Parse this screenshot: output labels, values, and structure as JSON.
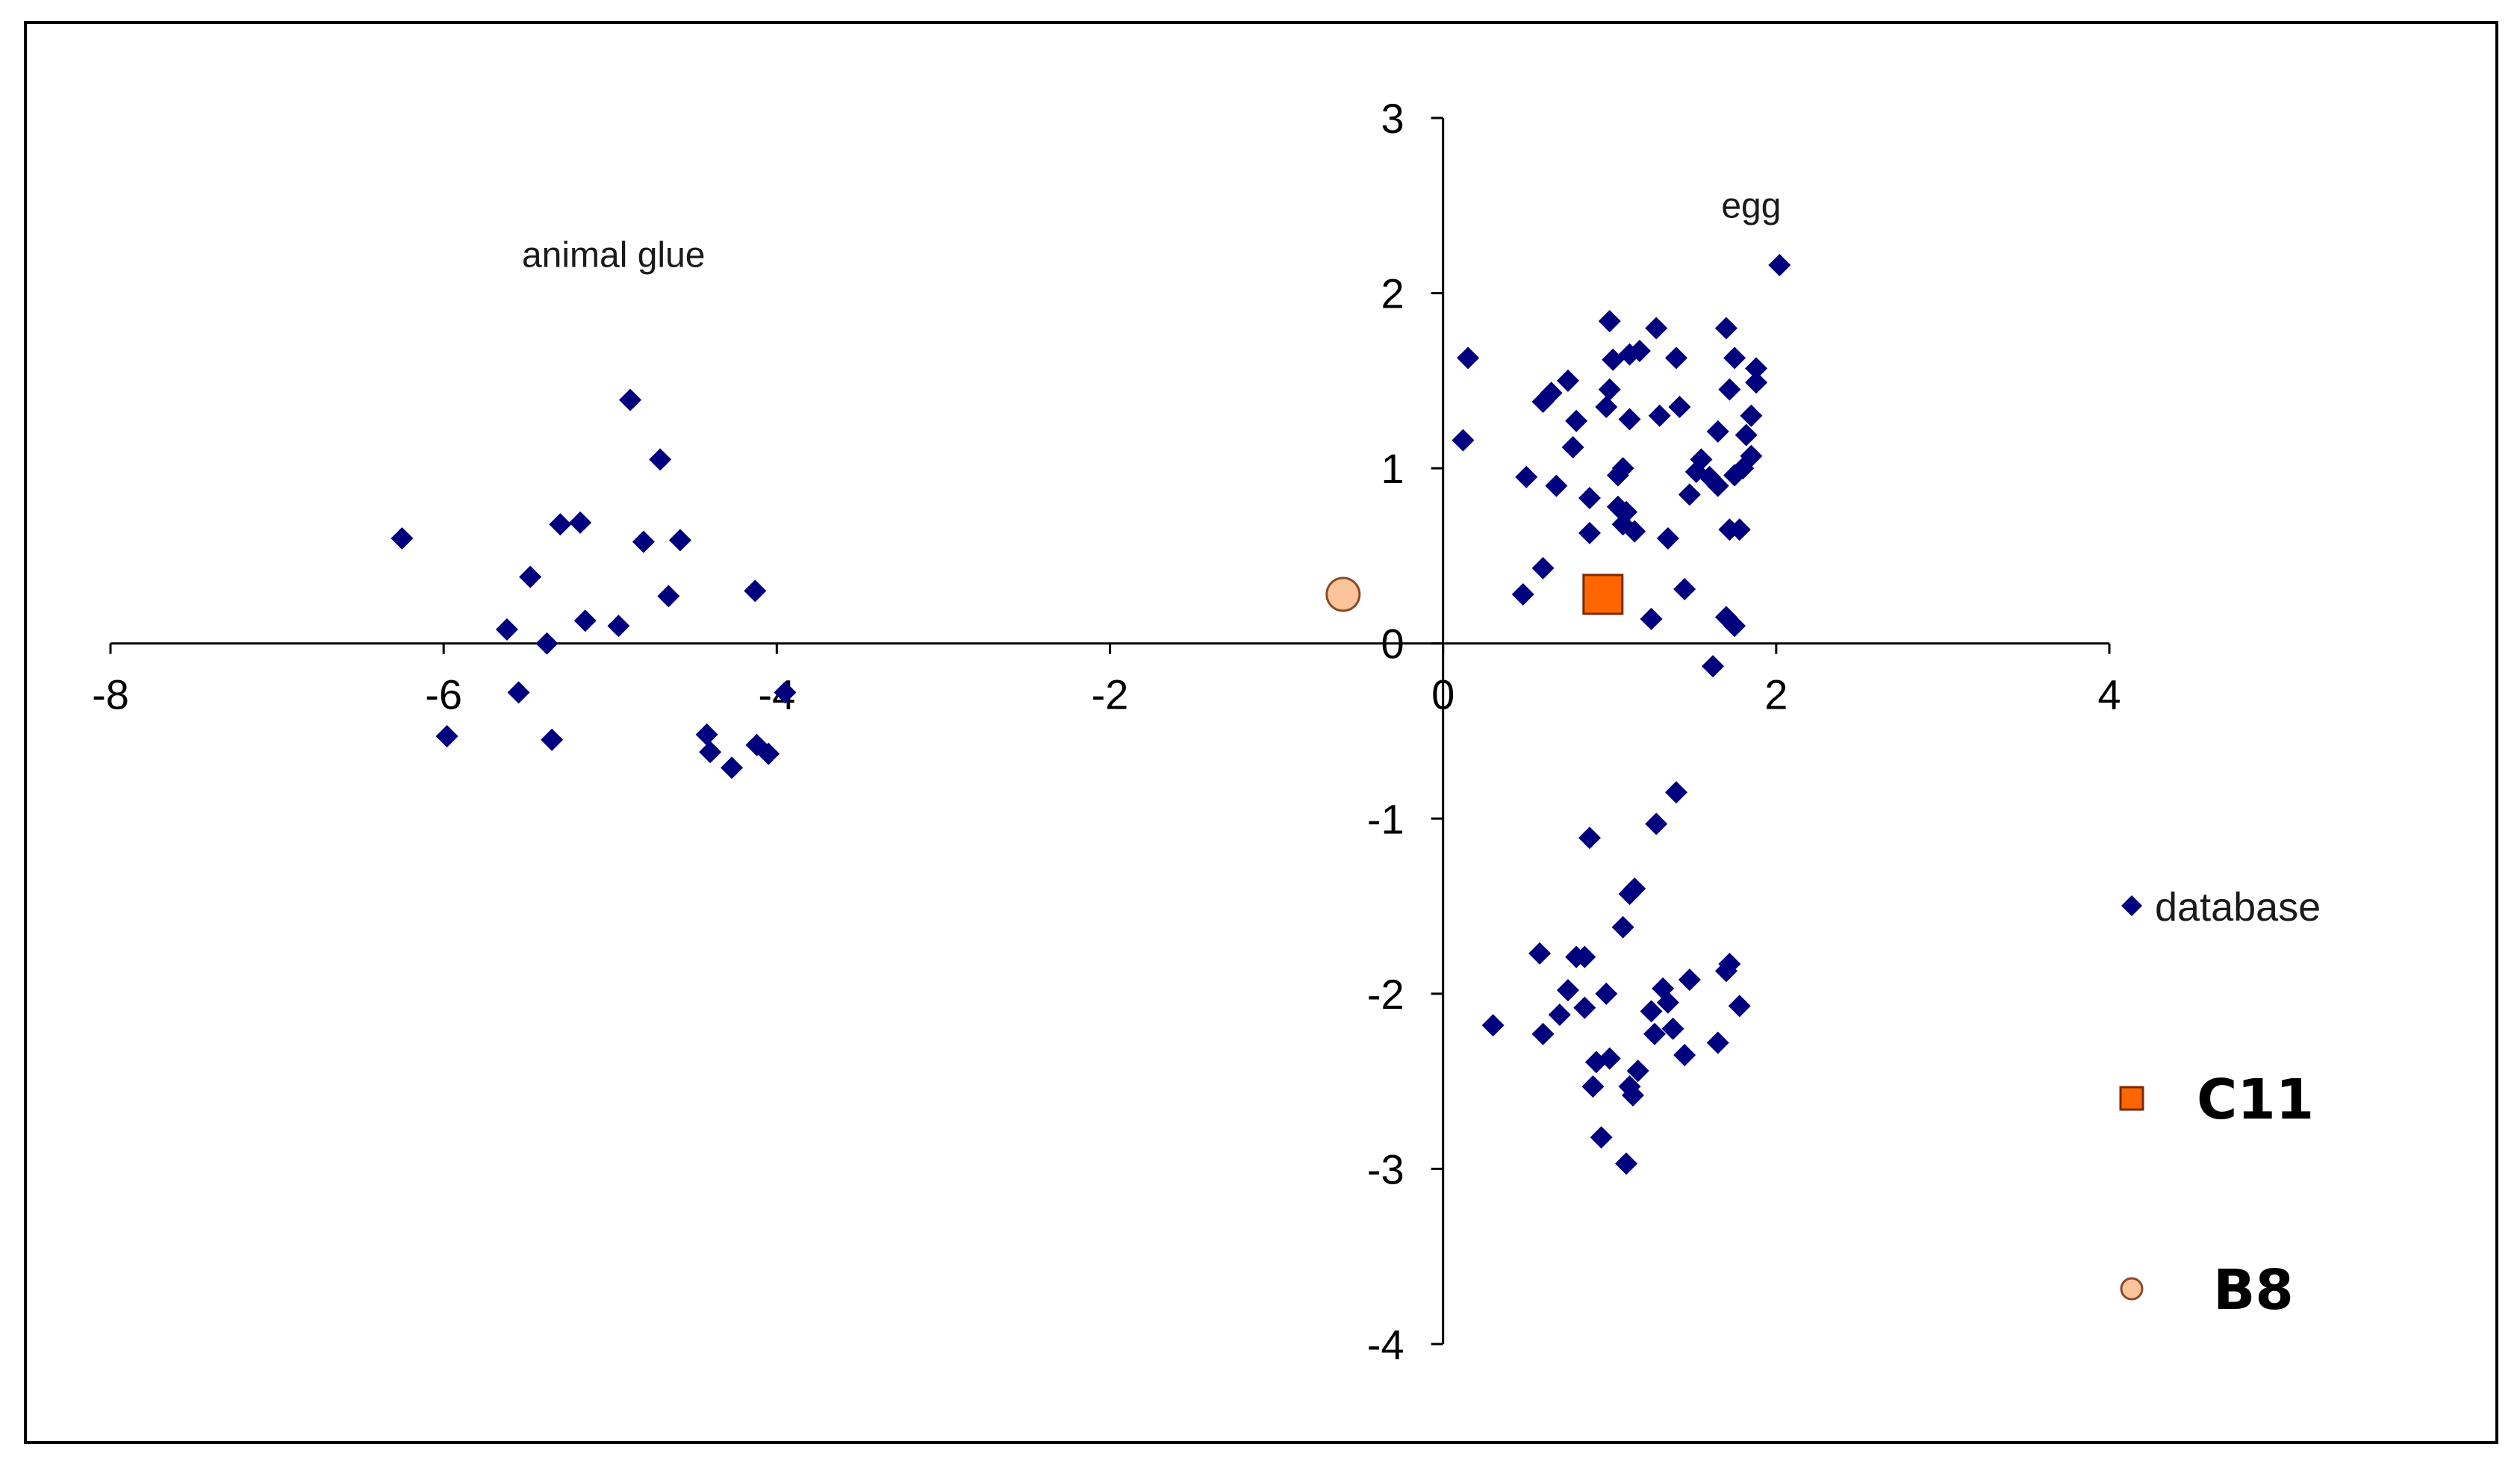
{
  "chart_data": {
    "type": "scatter",
    "xlim": [
      -8,
      4
    ],
    "ylim": [
      -4,
      3
    ],
    "x_ticks": [
      -8,
      -6,
      -4,
      -2,
      0,
      2,
      4
    ],
    "y_ticks": [
      3,
      2,
      1,
      0,
      -1,
      -2,
      -3,
      -4
    ],
    "grid": false,
    "legend_position": "right",
    "annotations": [
      {
        "text": "animal glue",
        "x": -4.98,
        "y": 2.15
      },
      {
        "text": "egg",
        "x": 1.85,
        "y": 2.43
      }
    ],
    "series": [
      {
        "name": "database",
        "marker": "diamond",
        "color": "#00007f",
        "points": [
          [
            -6.25,
            0.6
          ],
          [
            -5.98,
            -0.53
          ],
          [
            -5.62,
            0.08
          ],
          [
            -5.55,
            -0.28
          ],
          [
            -5.48,
            0.38
          ],
          [
            -5.38,
            0.0
          ],
          [
            -5.35,
            -0.55
          ],
          [
            -5.3,
            0.68
          ],
          [
            -5.18,
            0.69
          ],
          [
            -5.15,
            0.13
          ],
          [
            -4.95,
            0.1
          ],
          [
            -4.88,
            1.39
          ],
          [
            -4.8,
            0.58
          ],
          [
            -4.7,
            1.05
          ],
          [
            -4.65,
            0.27
          ],
          [
            -4.58,
            0.59
          ],
          [
            -4.42,
            -0.52
          ],
          [
            -4.4,
            -0.62
          ],
          [
            -4.27,
            -0.71
          ],
          [
            -4.13,
            0.3
          ],
          [
            -4.12,
            -0.58
          ],
          [
            -4.05,
            -0.63
          ],
          [
            -3.95,
            -0.28
          ],
          [
            0.12,
            1.16
          ],
          [
            0.15,
            1.63
          ],
          [
            0.48,
            0.28
          ],
          [
            0.5,
            0.95
          ],
          [
            0.6,
            1.38
          ],
          [
            0.6,
            0.43
          ],
          [
            0.65,
            1.43
          ],
          [
            0.68,
            0.9
          ],
          [
            0.75,
            1.5
          ],
          [
            0.78,
            1.12
          ],
          [
            0.8,
            1.27
          ],
          [
            0.88,
            0.83
          ],
          [
            0.88,
            0.63
          ],
          [
            0.98,
            1.35
          ],
          [
            1.0,
            1.84
          ],
          [
            1.0,
            1.45
          ],
          [
            1.02,
            1.62
          ],
          [
            1.05,
            0.78
          ],
          [
            1.05,
            0.96
          ],
          [
            1.08,
            1.0
          ],
          [
            1.08,
            0.68
          ],
          [
            1.1,
            0.75
          ],
          [
            1.12,
            1.28
          ],
          [
            1.12,
            1.65
          ],
          [
            1.15,
            0.64
          ],
          [
            1.18,
            1.67
          ],
          [
            1.25,
            0.14
          ],
          [
            1.28,
            1.8
          ],
          [
            1.3,
            1.3
          ],
          [
            1.35,
            0.6
          ],
          [
            1.4,
            1.63
          ],
          [
            1.42,
            1.35
          ],
          [
            1.45,
            0.31
          ],
          [
            1.48,
            0.85
          ],
          [
            1.52,
            0.98
          ],
          [
            1.55,
            1.05
          ],
          [
            1.6,
            0.95
          ],
          [
            1.62,
            -0.13
          ],
          [
            1.65,
            1.21
          ],
          [
            1.65,
            0.9
          ],
          [
            1.7,
            1.8
          ],
          [
            1.7,
            0.15
          ],
          [
            1.72,
            1.45
          ],
          [
            1.72,
            0.65
          ],
          [
            1.75,
            0.96
          ],
          [
            1.75,
            0.1
          ],
          [
            1.75,
            1.63
          ],
          [
            1.78,
            0.65
          ],
          [
            1.8,
            1.0
          ],
          [
            1.82,
            1.19
          ],
          [
            1.85,
            1.07
          ],
          [
            1.85,
            1.3
          ],
          [
            1.88,
            1.57
          ],
          [
            1.88,
            1.49
          ],
          [
            2.02,
            2.16
          ],
          [
            0.3,
            -2.18
          ],
          [
            0.58,
            -1.77
          ],
          [
            0.6,
            -2.23
          ],
          [
            0.7,
            -2.12
          ],
          [
            0.75,
            -1.98
          ],
          [
            0.8,
            -1.79
          ],
          [
            0.85,
            -1.79
          ],
          [
            0.85,
            -2.08
          ],
          [
            0.88,
            -1.11
          ],
          [
            0.9,
            -2.53
          ],
          [
            0.92,
            -2.39
          ],
          [
            0.95,
            -2.82
          ],
          [
            0.98,
            -2.0
          ],
          [
            1.0,
            -2.37
          ],
          [
            1.08,
            -1.62
          ],
          [
            1.1,
            -2.97
          ],
          [
            1.12,
            -1.43
          ],
          [
            1.12,
            -2.53
          ],
          [
            1.14,
            -2.58
          ],
          [
            1.15,
            -1.4
          ],
          [
            1.17,
            -2.44
          ],
          [
            1.25,
            -2.1
          ],
          [
            1.27,
            -2.23
          ],
          [
            1.28,
            -1.03
          ],
          [
            1.32,
            -1.97
          ],
          [
            1.35,
            -2.05
          ],
          [
            1.38,
            -2.2
          ],
          [
            1.4,
            -0.85
          ],
          [
            1.45,
            -2.35
          ],
          [
            1.48,
            -1.92
          ],
          [
            1.65,
            -2.28
          ],
          [
            1.7,
            -1.87
          ],
          [
            1.72,
            -1.83
          ],
          [
            1.78,
            -2.07
          ]
        ]
      },
      {
        "name": "C11",
        "marker": "square",
        "color": "#ff6600",
        "points": [
          [
            0.96,
            0.28
          ]
        ]
      },
      {
        "name": "B8",
        "marker": "circle",
        "color": "#fbc49a",
        "points": [
          [
            -0.6,
            0.28
          ]
        ]
      }
    ]
  }
}
